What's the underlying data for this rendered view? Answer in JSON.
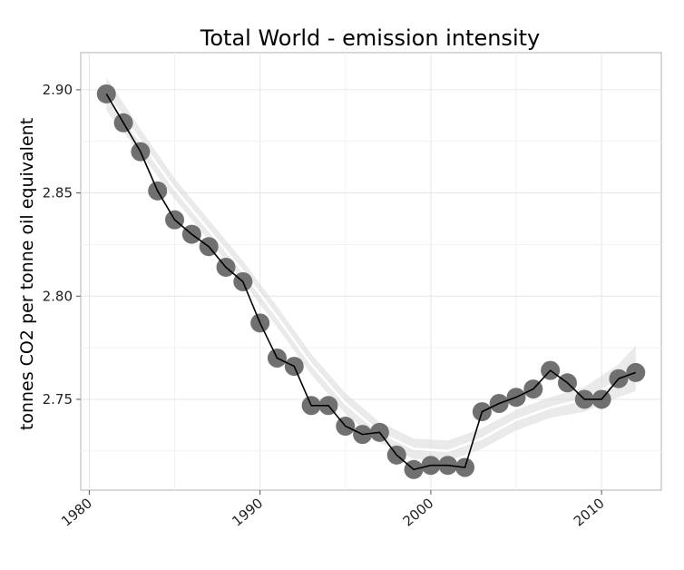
{
  "chart_data": {
    "type": "line",
    "title": "Total World - emission intensity",
    "xlabel": "",
    "ylabel": "tonnes CO2 per tonne oil equivalent",
    "xlim": [
      1979.5,
      2013.5
    ],
    "ylim": [
      2.706,
      2.918
    ],
    "x_ticks": [
      1980,
      1990,
      2000,
      2010
    ],
    "x_tick_labels": [
      "1980",
      "1990",
      "2000",
      "2010"
    ],
    "y_ticks": [
      2.75,
      2.8,
      2.85,
      2.9
    ],
    "y_tick_labels": [
      "2.75",
      "2.80",
      "2.85",
      "2.90"
    ],
    "grid": true,
    "series": [
      {
        "x": [
          1981,
          1982,
          1983,
          1984,
          1985,
          1986,
          1987,
          1988,
          1989,
          1990,
          1991,
          1992,
          1993,
          1994,
          1995,
          1996,
          1997,
          1998,
          1999,
          2000,
          2001,
          2002,
          2003,
          2004,
          2005,
          2006,
          2007,
          2008,
          2009,
          2010,
          2011,
          2012
        ],
        "values": [
          2.898,
          2.884,
          2.87,
          2.851,
          2.837,
          2.83,
          2.824,
          2.814,
          2.807,
          2.787,
          2.77,
          2.766,
          2.747,
          2.747,
          2.737,
          2.733,
          2.734,
          2.723,
          2.716,
          2.718,
          2.718,
          2.717,
          2.744,
          2.748,
          2.751,
          2.755,
          2.764,
          2.758,
          2.75,
          2.75,
          2.76,
          2.763
        ]
      }
    ],
    "smooth": {
      "x": [
        1981,
        1983,
        1985,
        1987,
        1989,
        1991,
        1993,
        1995,
        1997,
        1999,
        2001,
        2003,
        2005,
        2007,
        2009,
        2011,
        2012
      ],
      "values": [
        2.898,
        2.875,
        2.852,
        2.832,
        2.812,
        2.79,
        2.767,
        2.748,
        2.734,
        2.726,
        2.725,
        2.731,
        2.74,
        2.746,
        2.75,
        2.759,
        2.765
      ],
      "se": [
        0.008,
        0.006,
        0.005,
        0.005,
        0.005,
        0.005,
        0.005,
        0.005,
        0.005,
        0.005,
        0.005,
        0.005,
        0.005,
        0.005,
        0.006,
        0.008,
        0.011
      ]
    },
    "colors": {
      "point": "#707070",
      "line": "#000000",
      "ribbon": "#d9d9d9",
      "smooth_line": "#ffffff"
    }
  }
}
